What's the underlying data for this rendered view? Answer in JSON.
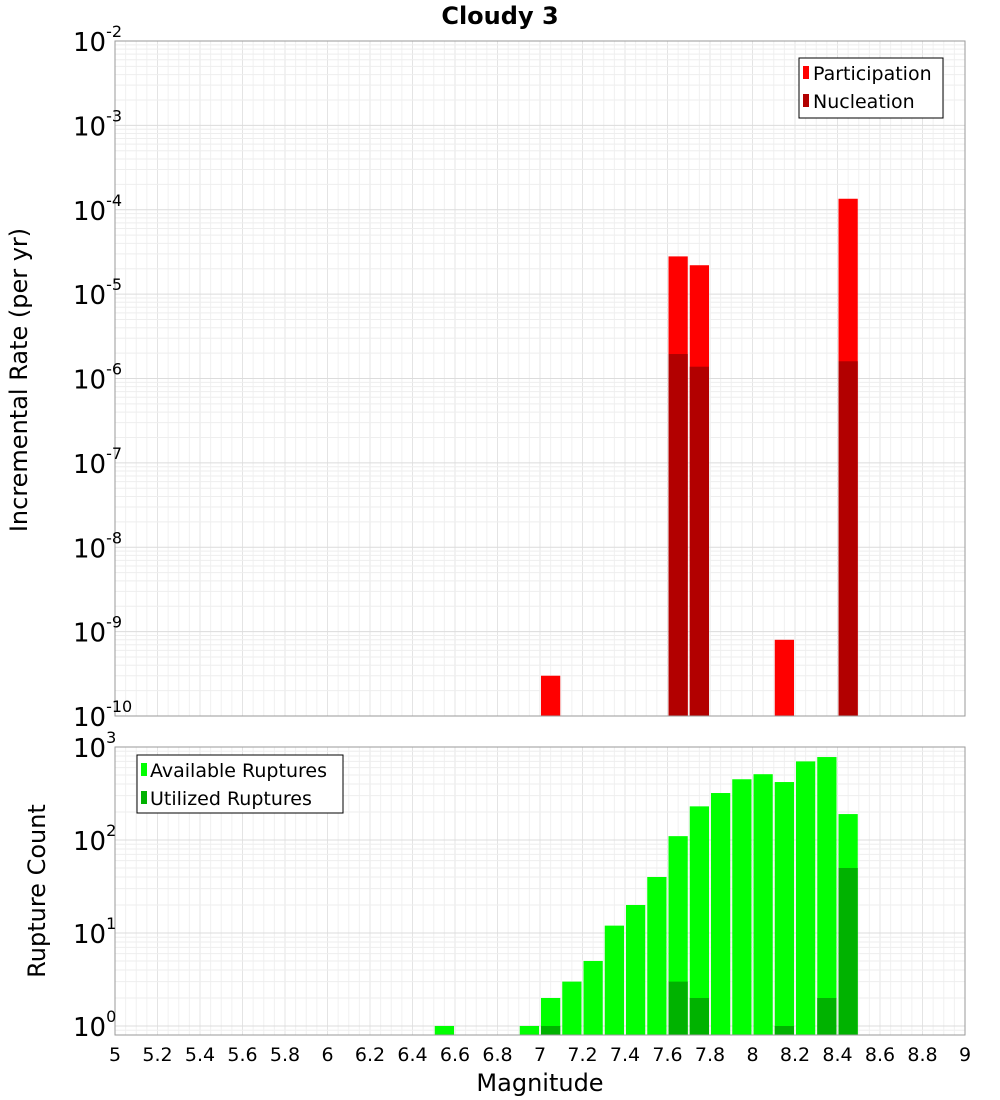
{
  "title": "Cloudy 3",
  "xlabel": "Magnitude",
  "xlim": [
    5,
    9
  ],
  "xticks": [
    "5",
    "5.2",
    "5.4",
    "5.6",
    "5.8",
    "6",
    "6.2",
    "6.4",
    "6.6",
    "6.8",
    "7",
    "7.2",
    "7.4",
    "7.6",
    "7.8",
    "8",
    "8.2",
    "8.4",
    "8.6",
    "8.8",
    "9"
  ],
  "chart_data": [
    {
      "type": "bar",
      "panel": "top",
      "ylabel": "Incremental Rate (per yr)",
      "yscale": "log",
      "ylim": [
        1e-10,
        0.01
      ],
      "ytick_exponents": [
        "-10",
        "-9",
        "-8",
        "-7",
        "-6",
        "-5",
        "-4",
        "-3",
        "-2"
      ],
      "grid": true,
      "legend_position": "top-right",
      "series": [
        {
          "name": "Participation",
          "color": "#ff0000",
          "x": [
            7.05,
            7.65,
            7.75,
            8.15,
            8.45
          ],
          "values": [
            3e-10,
            2.8e-05,
            2.2e-05,
            8e-10,
            0.000135
          ]
        },
        {
          "name": "Nucleation",
          "color": "#b20000",
          "x": [
            7.65,
            7.75,
            8.45
          ],
          "values": [
            1.95e-06,
            1.38e-06,
            1.6e-06
          ]
        }
      ]
    },
    {
      "type": "bar",
      "panel": "bottom",
      "ylabel": "Rupture Count",
      "yscale": "log",
      "ylim": [
        0.8,
        1000
      ],
      "ytick_exponents": [
        "0",
        "1",
        "2",
        "3"
      ],
      "grid": true,
      "legend_position": "top-left",
      "series": [
        {
          "name": "Available Ruptures",
          "color": "#00ff00",
          "x": [
            6.55,
            6.95,
            7.05,
            7.15,
            7.25,
            7.35,
            7.45,
            7.55,
            7.65,
            7.75,
            7.85,
            7.95,
            8.05,
            8.15,
            8.25,
            8.35,
            8.45
          ],
          "values": [
            1,
            1,
            2,
            3,
            5,
            12,
            20,
            40,
            110,
            230,
            320,
            450,
            510,
            420,
            700,
            780,
            190
          ]
        },
        {
          "name": "Utilized Ruptures",
          "color": "#00b200",
          "x": [
            7.05,
            7.65,
            7.75,
            8.15,
            8.35,
            8.45
          ],
          "values": [
            1,
            3,
            2,
            1,
            2,
            50
          ]
        }
      ]
    }
  ]
}
